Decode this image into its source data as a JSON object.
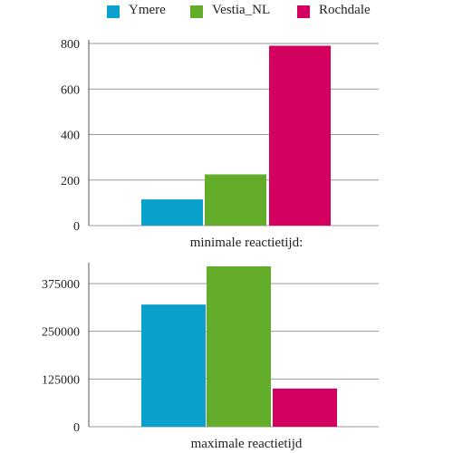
{
  "colors": {
    "Ymere": "#0aa2cc",
    "Vestia_NL": "#63ad2a",
    "Rochdale": "#d4005f",
    "grid": "#9a9a9a",
    "axis": "#555555"
  },
  "legend": [
    {
      "name": "Ymere",
      "color": "#0aa2cc"
    },
    {
      "name": "Vestia_NL",
      "color": "#63ad2a"
    },
    {
      "name": "Rochdale",
      "color": "#d4005f"
    }
  ],
  "chart_data": [
    {
      "type": "bar",
      "xlabel": "minimale reactietijd:",
      "ylabel": "",
      "ylim": [
        0,
        800
      ],
      "yticks": [
        0,
        200,
        400,
        600,
        800
      ],
      "grid": true,
      "legend": "top",
      "categories": [
        "minimale reactietijd:"
      ],
      "series": [
        {
          "name": "Ymere",
          "values": [
            115
          ]
        },
        {
          "name": "Vestia_NL",
          "values": [
            225
          ]
        },
        {
          "name": "Rochdale",
          "values": [
            790
          ]
        }
      ]
    },
    {
      "type": "bar",
      "xlabel": "maximale reactietijd",
      "ylabel": "",
      "ylim": [
        0,
        420000
      ],
      "yticks": [
        0,
        125000,
        250000,
        375000
      ],
      "grid": true,
      "legend": "top",
      "categories": [
        "maximale reactietijd"
      ],
      "series": [
        {
          "name": "Ymere",
          "values": [
            320000
          ]
        },
        {
          "name": "Vestia_NL",
          "values": [
            420000
          ]
        },
        {
          "name": "Rochdale",
          "values": [
            100000
          ]
        }
      ]
    }
  ]
}
